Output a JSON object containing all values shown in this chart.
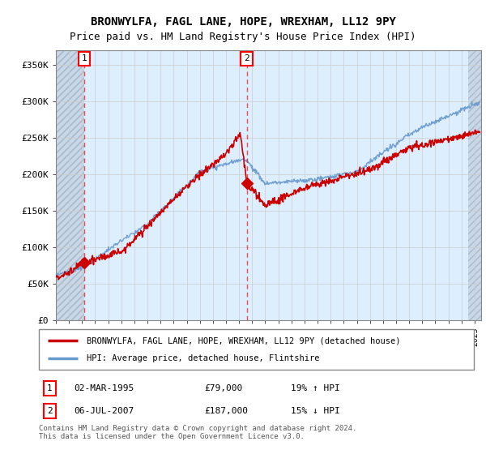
{
  "title": "BRONWYLFA, FAGL LANE, HOPE, WREXHAM, LL12 9PY",
  "subtitle": "Price paid vs. HM Land Registry's House Price Index (HPI)",
  "ylim": [
    0,
    370000
  ],
  "yticks": [
    0,
    50000,
    100000,
    150000,
    200000,
    250000,
    300000,
    350000
  ],
  "ytick_labels": [
    "£0",
    "£50K",
    "£100K",
    "£150K",
    "£200K",
    "£250K",
    "£300K",
    "£350K"
  ],
  "hpi_color": "#6699cc",
  "property_color": "#cc0000",
  "bg_main": "#ddeeff",
  "bg_hatch": "#c8d8e8",
  "sale1_date": 1995.16,
  "sale1_price": 79000,
  "sale1_label": "1",
  "sale2_date": 2007.58,
  "sale2_price": 187000,
  "sale2_label": "2",
  "legend_line1": "BRONWYLFA, FAGL LANE, HOPE, WREXHAM, LL12 9PY (detached house)",
  "legend_line2": "HPI: Average price, detached house, Flintshire",
  "footer": "Contains HM Land Registry data © Crown copyright and database right 2024.\nThis data is licensed under the Open Government Licence v3.0.",
  "title_fontsize": 10,
  "subtitle_fontsize": 9,
  "xmin": 1993.0,
  "xmax": 2025.5
}
